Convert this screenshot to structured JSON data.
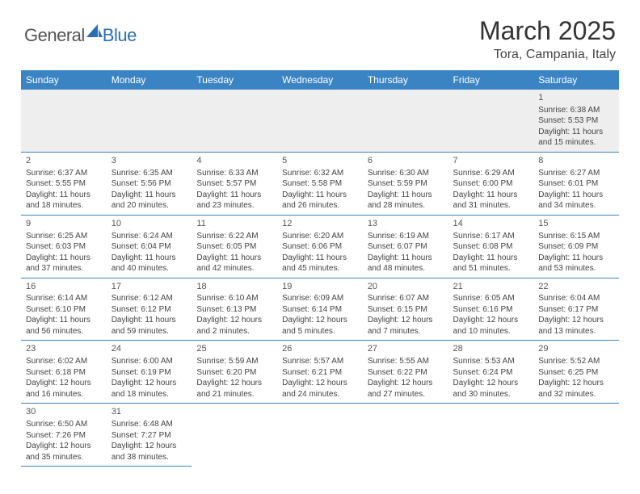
{
  "logo": {
    "general": "General",
    "blue": "Blue"
  },
  "title": "March 2025",
  "location": "Tora, Campania, Italy",
  "day_headers": [
    "Sunday",
    "Monday",
    "Tuesday",
    "Wednesday",
    "Thursday",
    "Friday",
    "Saturday"
  ],
  "colors": {
    "header_bg": "#3b84c4",
    "header_text": "#ffffff",
    "cell_border": "#3b84c4",
    "blank_bg": "#eeeeee",
    "text": "#444444",
    "logo_blue": "#2a6fb5"
  },
  "weeks": [
    [
      {
        "blank": true
      },
      {
        "blank": true
      },
      {
        "blank": true
      },
      {
        "blank": true
      },
      {
        "blank": true
      },
      {
        "blank": true
      },
      {
        "day": "1",
        "sunrise": "Sunrise: 6:38 AM",
        "sunset": "Sunset: 5:53 PM",
        "daylight1": "Daylight: 11 hours",
        "daylight2": "and 15 minutes."
      }
    ],
    [
      {
        "day": "2",
        "sunrise": "Sunrise: 6:37 AM",
        "sunset": "Sunset: 5:55 PM",
        "daylight1": "Daylight: 11 hours",
        "daylight2": "and 18 minutes."
      },
      {
        "day": "3",
        "sunrise": "Sunrise: 6:35 AM",
        "sunset": "Sunset: 5:56 PM",
        "daylight1": "Daylight: 11 hours",
        "daylight2": "and 20 minutes."
      },
      {
        "day": "4",
        "sunrise": "Sunrise: 6:33 AM",
        "sunset": "Sunset: 5:57 PM",
        "daylight1": "Daylight: 11 hours",
        "daylight2": "and 23 minutes."
      },
      {
        "day": "5",
        "sunrise": "Sunrise: 6:32 AM",
        "sunset": "Sunset: 5:58 PM",
        "daylight1": "Daylight: 11 hours",
        "daylight2": "and 26 minutes."
      },
      {
        "day": "6",
        "sunrise": "Sunrise: 6:30 AM",
        "sunset": "Sunset: 5:59 PM",
        "daylight1": "Daylight: 11 hours",
        "daylight2": "and 28 minutes."
      },
      {
        "day": "7",
        "sunrise": "Sunrise: 6:29 AM",
        "sunset": "Sunset: 6:00 PM",
        "daylight1": "Daylight: 11 hours",
        "daylight2": "and 31 minutes."
      },
      {
        "day": "8",
        "sunrise": "Sunrise: 6:27 AM",
        "sunset": "Sunset: 6:01 PM",
        "daylight1": "Daylight: 11 hours",
        "daylight2": "and 34 minutes."
      }
    ],
    [
      {
        "day": "9",
        "sunrise": "Sunrise: 6:25 AM",
        "sunset": "Sunset: 6:03 PM",
        "daylight1": "Daylight: 11 hours",
        "daylight2": "and 37 minutes."
      },
      {
        "day": "10",
        "sunrise": "Sunrise: 6:24 AM",
        "sunset": "Sunset: 6:04 PM",
        "daylight1": "Daylight: 11 hours",
        "daylight2": "and 40 minutes."
      },
      {
        "day": "11",
        "sunrise": "Sunrise: 6:22 AM",
        "sunset": "Sunset: 6:05 PM",
        "daylight1": "Daylight: 11 hours",
        "daylight2": "and 42 minutes."
      },
      {
        "day": "12",
        "sunrise": "Sunrise: 6:20 AM",
        "sunset": "Sunset: 6:06 PM",
        "daylight1": "Daylight: 11 hours",
        "daylight2": "and 45 minutes."
      },
      {
        "day": "13",
        "sunrise": "Sunrise: 6:19 AM",
        "sunset": "Sunset: 6:07 PM",
        "daylight1": "Daylight: 11 hours",
        "daylight2": "and 48 minutes."
      },
      {
        "day": "14",
        "sunrise": "Sunrise: 6:17 AM",
        "sunset": "Sunset: 6:08 PM",
        "daylight1": "Daylight: 11 hours",
        "daylight2": "and 51 minutes."
      },
      {
        "day": "15",
        "sunrise": "Sunrise: 6:15 AM",
        "sunset": "Sunset: 6:09 PM",
        "daylight1": "Daylight: 11 hours",
        "daylight2": "and 53 minutes."
      }
    ],
    [
      {
        "day": "16",
        "sunrise": "Sunrise: 6:14 AM",
        "sunset": "Sunset: 6:10 PM",
        "daylight1": "Daylight: 11 hours",
        "daylight2": "and 56 minutes."
      },
      {
        "day": "17",
        "sunrise": "Sunrise: 6:12 AM",
        "sunset": "Sunset: 6:12 PM",
        "daylight1": "Daylight: 11 hours",
        "daylight2": "and 59 minutes."
      },
      {
        "day": "18",
        "sunrise": "Sunrise: 6:10 AM",
        "sunset": "Sunset: 6:13 PM",
        "daylight1": "Daylight: 12 hours",
        "daylight2": "and 2 minutes."
      },
      {
        "day": "19",
        "sunrise": "Sunrise: 6:09 AM",
        "sunset": "Sunset: 6:14 PM",
        "daylight1": "Daylight: 12 hours",
        "daylight2": "and 5 minutes."
      },
      {
        "day": "20",
        "sunrise": "Sunrise: 6:07 AM",
        "sunset": "Sunset: 6:15 PM",
        "daylight1": "Daylight: 12 hours",
        "daylight2": "and 7 minutes."
      },
      {
        "day": "21",
        "sunrise": "Sunrise: 6:05 AM",
        "sunset": "Sunset: 6:16 PM",
        "daylight1": "Daylight: 12 hours",
        "daylight2": "and 10 minutes."
      },
      {
        "day": "22",
        "sunrise": "Sunrise: 6:04 AM",
        "sunset": "Sunset: 6:17 PM",
        "daylight1": "Daylight: 12 hours",
        "daylight2": "and 13 minutes."
      }
    ],
    [
      {
        "day": "23",
        "sunrise": "Sunrise: 6:02 AM",
        "sunset": "Sunset: 6:18 PM",
        "daylight1": "Daylight: 12 hours",
        "daylight2": "and 16 minutes."
      },
      {
        "day": "24",
        "sunrise": "Sunrise: 6:00 AM",
        "sunset": "Sunset: 6:19 PM",
        "daylight1": "Daylight: 12 hours",
        "daylight2": "and 18 minutes."
      },
      {
        "day": "25",
        "sunrise": "Sunrise: 5:59 AM",
        "sunset": "Sunset: 6:20 PM",
        "daylight1": "Daylight: 12 hours",
        "daylight2": "and 21 minutes."
      },
      {
        "day": "26",
        "sunrise": "Sunrise: 5:57 AM",
        "sunset": "Sunset: 6:21 PM",
        "daylight1": "Daylight: 12 hours",
        "daylight2": "and 24 minutes."
      },
      {
        "day": "27",
        "sunrise": "Sunrise: 5:55 AM",
        "sunset": "Sunset: 6:22 PM",
        "daylight1": "Daylight: 12 hours",
        "daylight2": "and 27 minutes."
      },
      {
        "day": "28",
        "sunrise": "Sunrise: 5:53 AM",
        "sunset": "Sunset: 6:24 PM",
        "daylight1": "Daylight: 12 hours",
        "daylight2": "and 30 minutes."
      },
      {
        "day": "29",
        "sunrise": "Sunrise: 5:52 AM",
        "sunset": "Sunset: 6:25 PM",
        "daylight1": "Daylight: 12 hours",
        "daylight2": "and 32 minutes."
      }
    ],
    [
      {
        "day": "30",
        "sunrise": "Sunrise: 6:50 AM",
        "sunset": "Sunset: 7:26 PM",
        "daylight1": "Daylight: 12 hours",
        "daylight2": "and 35 minutes."
      },
      {
        "day": "31",
        "sunrise": "Sunrise: 6:48 AM",
        "sunset": "Sunset: 7:27 PM",
        "daylight1": "Daylight: 12 hours",
        "daylight2": "and 38 minutes."
      },
      {
        "blank": true
      },
      {
        "blank": true
      },
      {
        "blank": true
      },
      {
        "blank": true
      },
      {
        "blank": true
      }
    ]
  ]
}
